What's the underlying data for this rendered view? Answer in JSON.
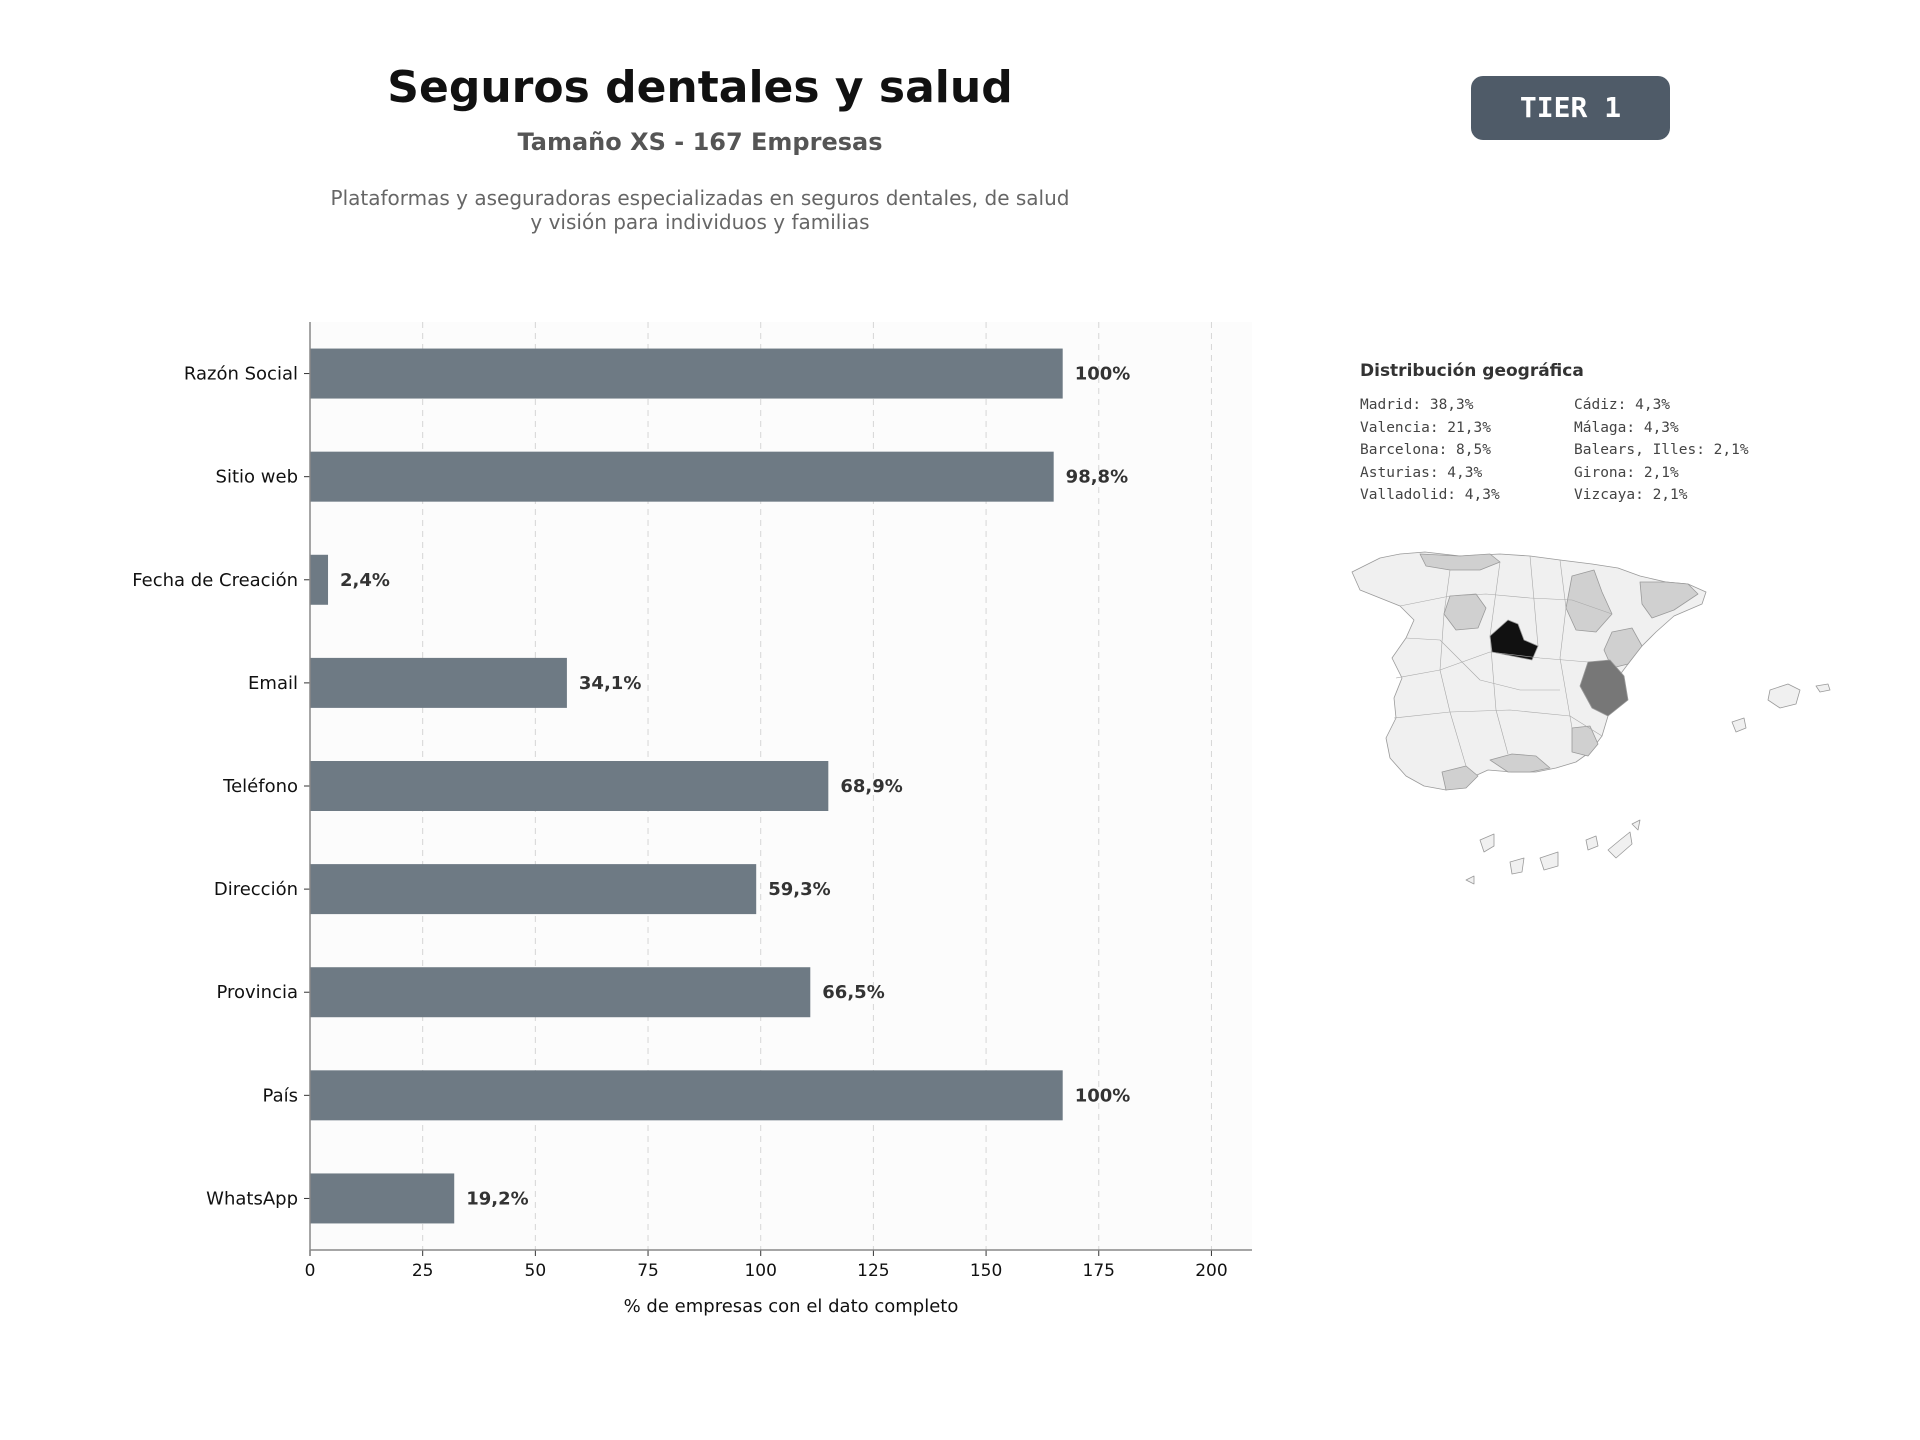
{
  "header": {
    "title": "Seguros dentales y salud",
    "subtitle": "Tamaño XS - 167 Empresas",
    "description": "Plataformas y aseguradoras especializadas en seguros dentales, de salud y visión para individuos y familias",
    "tier_badge": "TIER 1"
  },
  "colors": {
    "bar": "#6e7a84",
    "badge": "#4f5b68",
    "map_highlight": "#111111",
    "map_secondary": "#777777",
    "map_light": "#d0d0d0",
    "map_base": "#f0f0f0"
  },
  "chart_data": {
    "type": "bar",
    "orientation": "horizontal",
    "categories": [
      "Razón Social",
      "Sitio web",
      "Fecha de Creación",
      "Email",
      "Teléfono",
      "Dirección",
      "Provincia",
      "País",
      "WhatsApp"
    ],
    "values": [
      167,
      165,
      4,
      57,
      115,
      99,
      111,
      167,
      32
    ],
    "labels": [
      "100%",
      "98,8%",
      "2,4%",
      "34,1%",
      "68,9%",
      "59,3%",
      "66,5%",
      "100%",
      "19,2%"
    ],
    "xlabel": "% de empresas con el dato completo",
    "xlim": [
      0,
      209
    ],
    "xticks": [
      "0",
      "25",
      "50",
      "75",
      "100",
      "125",
      "150",
      "175",
      "200"
    ],
    "grid": true
  },
  "geo": {
    "title": "Distribución geográfica",
    "items": [
      "Madrid: 38,3%",
      "Cádiz: 4,3%",
      "Valencia: 21,3%",
      "Málaga: 4,3%",
      "Barcelona: 8,5%",
      "Balears, Illes: 2,1%",
      "Asturias: 4,3%",
      "Girona: 2,1%",
      "Valladolid: 4,3%",
      "Vizcaya: 2,1%"
    ]
  }
}
